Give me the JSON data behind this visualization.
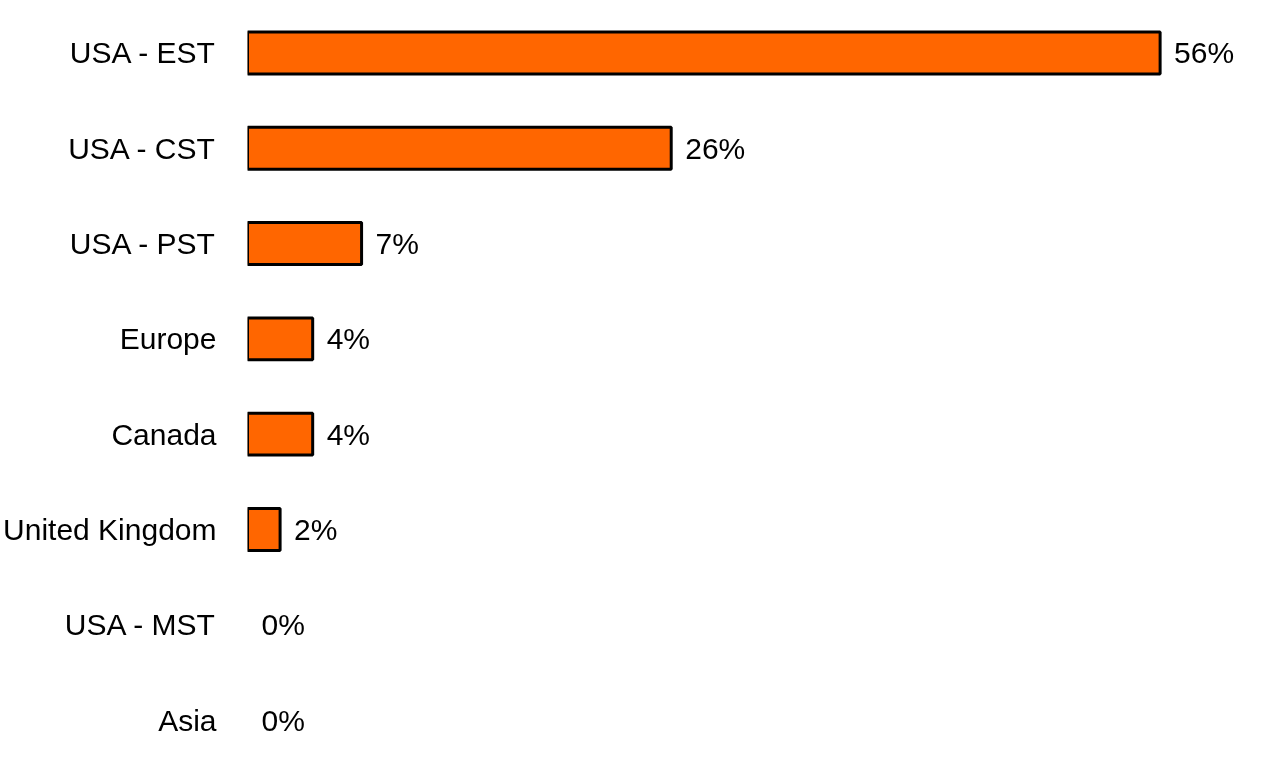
{
  "chart_data": {
    "type": "bar",
    "orientation": "horizontal",
    "categories": [
      "USA - EST",
      "USA - CST",
      "USA - PST",
      "Europe",
      "Canada",
      "United Kingdom",
      "USA - MST",
      "Asia"
    ],
    "values": [
      56,
      26,
      7,
      4,
      4,
      2,
      0,
      0
    ],
    "value_labels": [
      "56%",
      "26%",
      "7%",
      "4%",
      "4%",
      "2%",
      "0%",
      "0%"
    ],
    "color": "#ff6600",
    "grid": false,
    "tick_labels": "y"
  }
}
